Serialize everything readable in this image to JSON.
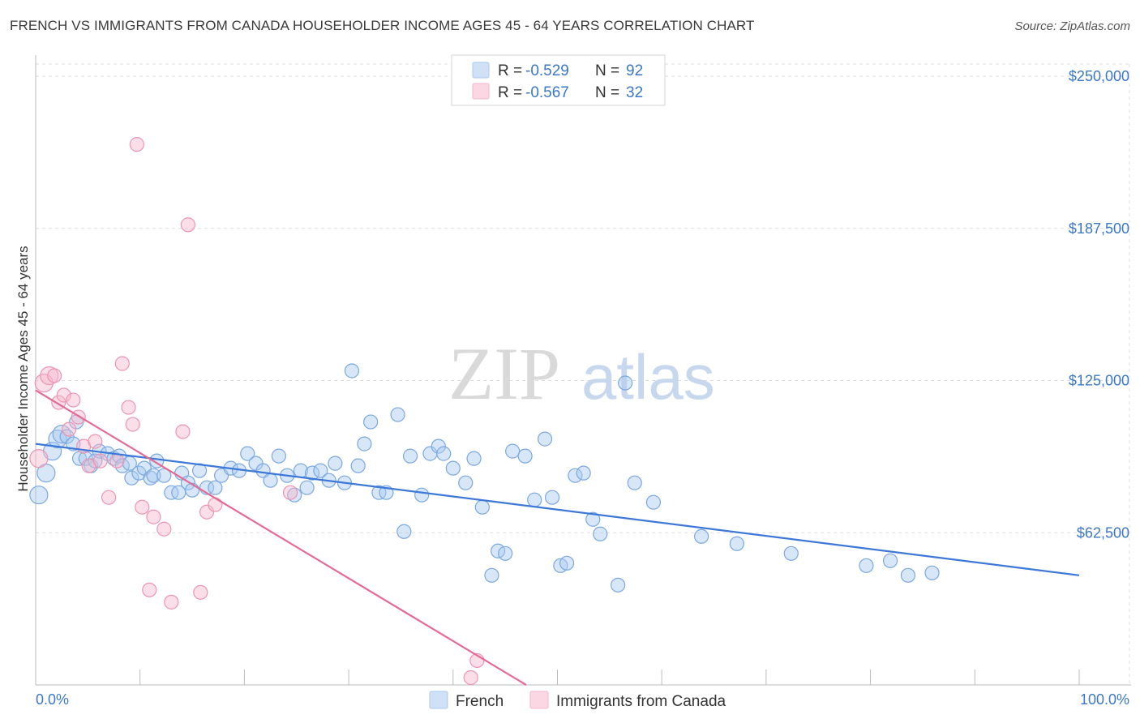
{
  "title": "FRENCH VS IMMIGRANTS FROM CANADA HOUSEHOLDER INCOME AGES 45 - 64 YEARS CORRELATION CHART",
  "source": "Source: ZipAtlas.com",
  "watermark": {
    "zip": "ZIP",
    "atlas": "atlas"
  },
  "legend_top": [
    {
      "r_label": "R = ",
      "r_value": "-0.529",
      "n_label": "N = ",
      "n_value": "92",
      "color": "#a9c9ef"
    },
    {
      "r_label": "R = ",
      "r_value": "-0.567",
      "n_label": "N = ",
      "n_value": "32",
      "color": "#f5b7cb"
    }
  ],
  "legend_bottom": [
    {
      "label": "French",
      "color": "#a9c9ef"
    },
    {
      "label": "Immigrants from Canada",
      "color": "#f5b7cb"
    }
  ],
  "chart_data": {
    "type": "scatter",
    "title": "FRENCH VS IMMIGRANTS FROM CANADA HOUSEHOLDER INCOME AGES 45 - 64 YEARS CORRELATION CHART",
    "xlabel": "",
    "ylabel": "Householder Income Ages 45 - 64 years",
    "x_tick_labels": [
      "0.0%",
      "100.0%"
    ],
    "y_tick_labels": [
      "$62,500",
      "$125,000",
      "$187,500",
      "$250,000"
    ],
    "y_ticks": [
      62500,
      125000,
      187500,
      250000
    ],
    "xlim": [
      0,
      100
    ],
    "ylim": [
      0,
      255000
    ],
    "grid": true,
    "legend_placement": "top-center",
    "colors": {
      "French": "#3b78d8",
      "Immigrants from Canada": "#e46a95"
    },
    "series": [
      {
        "name": "French",
        "points": [
          [
            0.3,
            78000
          ],
          [
            1.0,
            87000
          ],
          [
            1.6,
            96000
          ],
          [
            2.1,
            101000
          ],
          [
            2.5,
            103000
          ],
          [
            3.0,
            102000
          ],
          [
            3.6,
            99000
          ],
          [
            3.9,
            108000
          ],
          [
            4.2,
            93000
          ],
          [
            4.8,
            93000
          ],
          [
            5.3,
            90000
          ],
          [
            5.7,
            92000
          ],
          [
            6.1,
            96000
          ],
          [
            6.9,
            95000
          ],
          [
            7.5,
            93000
          ],
          [
            8.0,
            94000
          ],
          [
            8.3,
            90000
          ],
          [
            9.0,
            91000
          ],
          [
            9.2,
            85000
          ],
          [
            9.9,
            87000
          ],
          [
            10.4,
            89000
          ],
          [
            11.0,
            85000
          ],
          [
            11.3,
            86000
          ],
          [
            11.6,
            92000
          ],
          [
            12.3,
            86000
          ],
          [
            13.0,
            79000
          ],
          [
            13.7,
            79000
          ],
          [
            14.0,
            87000
          ],
          [
            14.6,
            83000
          ],
          [
            15.0,
            80000
          ],
          [
            15.7,
            88000
          ],
          [
            16.4,
            81000
          ],
          [
            17.2,
            81000
          ],
          [
            17.8,
            86000
          ],
          [
            18.7,
            89000
          ],
          [
            19.5,
            88000
          ],
          [
            20.3,
            95000
          ],
          [
            21.1,
            91000
          ],
          [
            21.8,
            88000
          ],
          [
            22.5,
            84000
          ],
          [
            23.3,
            94000
          ],
          [
            24.1,
            86000
          ],
          [
            24.8,
            78000
          ],
          [
            25.4,
            88000
          ],
          [
            26.0,
            81000
          ],
          [
            26.5,
            87000
          ],
          [
            27.3,
            88000
          ],
          [
            28.1,
            84000
          ],
          [
            28.7,
            91000
          ],
          [
            29.6,
            83000
          ],
          [
            30.3,
            129000
          ],
          [
            30.9,
            90000
          ],
          [
            31.5,
            99000
          ],
          [
            32.1,
            108000
          ],
          [
            32.9,
            79000
          ],
          [
            33.6,
            79000
          ],
          [
            34.7,
            111000
          ],
          [
            35.3,
            63000
          ],
          [
            35.9,
            94000
          ],
          [
            37.0,
            78000
          ],
          [
            37.8,
            95000
          ],
          [
            38.6,
            98000
          ],
          [
            39.1,
            95000
          ],
          [
            40.0,
            89000
          ],
          [
            41.2,
            83000
          ],
          [
            42.0,
            93000
          ],
          [
            42.8,
            73000
          ],
          [
            43.7,
            45000
          ],
          [
            44.3,
            55000
          ],
          [
            45.0,
            54000
          ],
          [
            45.7,
            96000
          ],
          [
            46.9,
            94000
          ],
          [
            47.8,
            76000
          ],
          [
            48.8,
            101000
          ],
          [
            49.5,
            77000
          ],
          [
            50.3,
            49000
          ],
          [
            50.9,
            50000
          ],
          [
            51.7,
            86000
          ],
          [
            52.5,
            87000
          ],
          [
            53.4,
            68000
          ],
          [
            54.1,
            62000
          ],
          [
            55.8,
            41000
          ],
          [
            56.5,
            124000
          ],
          [
            57.4,
            83000
          ],
          [
            59.2,
            75000
          ],
          [
            63.8,
            61000
          ],
          [
            67.2,
            58000
          ],
          [
            72.4,
            54000
          ],
          [
            79.6,
            49000
          ],
          [
            81.9,
            51000
          ],
          [
            83.6,
            45000
          ],
          [
            85.9,
            46000
          ]
        ]
      },
      {
        "name": "Immigrants from Canada",
        "points": [
          [
            0.3,
            93000
          ],
          [
            0.8,
            124000
          ],
          [
            1.3,
            127000
          ],
          [
            1.8,
            127000
          ],
          [
            2.2,
            116000
          ],
          [
            2.7,
            119000
          ],
          [
            3.2,
            105000
          ],
          [
            3.6,
            117000
          ],
          [
            4.1,
            110000
          ],
          [
            4.6,
            98000
          ],
          [
            5.1,
            90000
          ],
          [
            5.7,
            100000
          ],
          [
            6.2,
            92000
          ],
          [
            7.0,
            77000
          ],
          [
            7.8,
            92000
          ],
          [
            8.3,
            132000
          ],
          [
            8.9,
            114000
          ],
          [
            9.3,
            107000
          ],
          [
            9.7,
            222000
          ],
          [
            10.2,
            73000
          ],
          [
            10.9,
            39000
          ],
          [
            11.3,
            69000
          ],
          [
            12.3,
            64000
          ],
          [
            13.0,
            34000
          ],
          [
            14.1,
            104000
          ],
          [
            14.6,
            189000
          ],
          [
            15.8,
            38000
          ],
          [
            16.4,
            71000
          ],
          [
            17.2,
            74000
          ],
          [
            24.4,
            79000
          ],
          [
            41.7,
            3000
          ],
          [
            42.3,
            10000
          ]
        ]
      }
    ],
    "trend_lines": [
      {
        "series": "French",
        "x": [
          0,
          100
        ],
        "y": [
          99000,
          45000
        ]
      },
      {
        "series": "Immigrants from Canada",
        "x": [
          0,
          47
        ],
        "y": [
          121000,
          0
        ]
      }
    ]
  }
}
